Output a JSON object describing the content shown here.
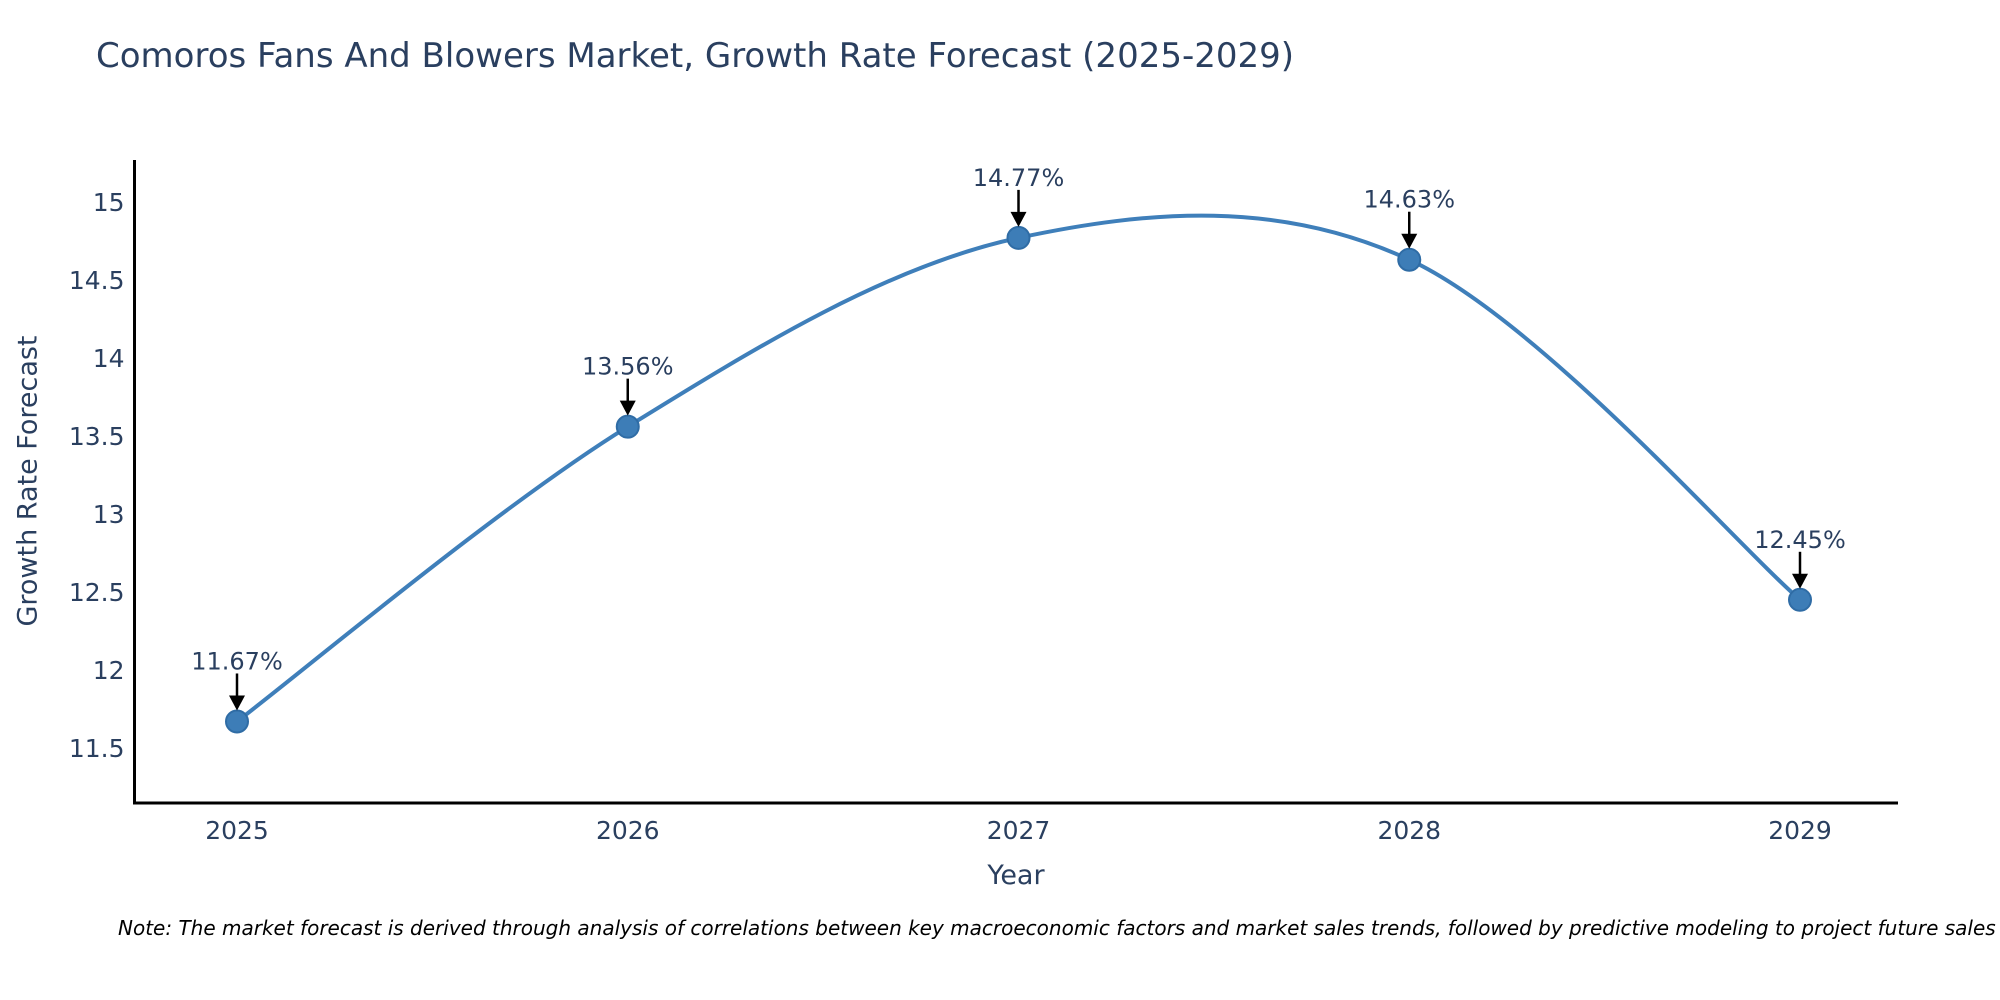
{
  "title": "Comoros Fans And Blowers Market, Growth Rate Forecast (2025-2029)",
  "note": "Note: The market forecast is derived through analysis of correlations between key macroeconomic factors and market sales trends, followed by predictive modeling to project future sales",
  "chart_data": {
    "type": "line",
    "title": "Comoros Fans And Blowers Market, Growth Rate Forecast (2025-2029)",
    "xlabel": "Year",
    "ylabel": "Growth Rate Forecast",
    "x": [
      2025,
      2026,
      2027,
      2028,
      2029
    ],
    "values": [
      11.67,
      13.56,
      14.77,
      14.63,
      12.45
    ],
    "point_labels": [
      "11.67%",
      "13.56%",
      "14.77%",
      "14.63%",
      "12.45%"
    ],
    "x_tick_labels": [
      "2025",
      "2026",
      "2027",
      "2028",
      "2029"
    ],
    "y_ticks": [
      11.5,
      12,
      12.5,
      13,
      13.5,
      14,
      14.5,
      15
    ],
    "ylim": [
      11.12,
      15.28
    ],
    "line_shape": "spline",
    "grid": false,
    "legend": "none",
    "colors": {
      "line": "#3f7fba",
      "marker_fill": "#3d7db7",
      "marker_edge": "#2f6ca5",
      "axis_line": "#000000",
      "tick_text": "#2a3f5f",
      "annotation_text": "#2a3f5f",
      "arrow": "#000000",
      "title_text": "#2a3f5f",
      "note_text": "#000000",
      "background": "#ffffff"
    }
  }
}
